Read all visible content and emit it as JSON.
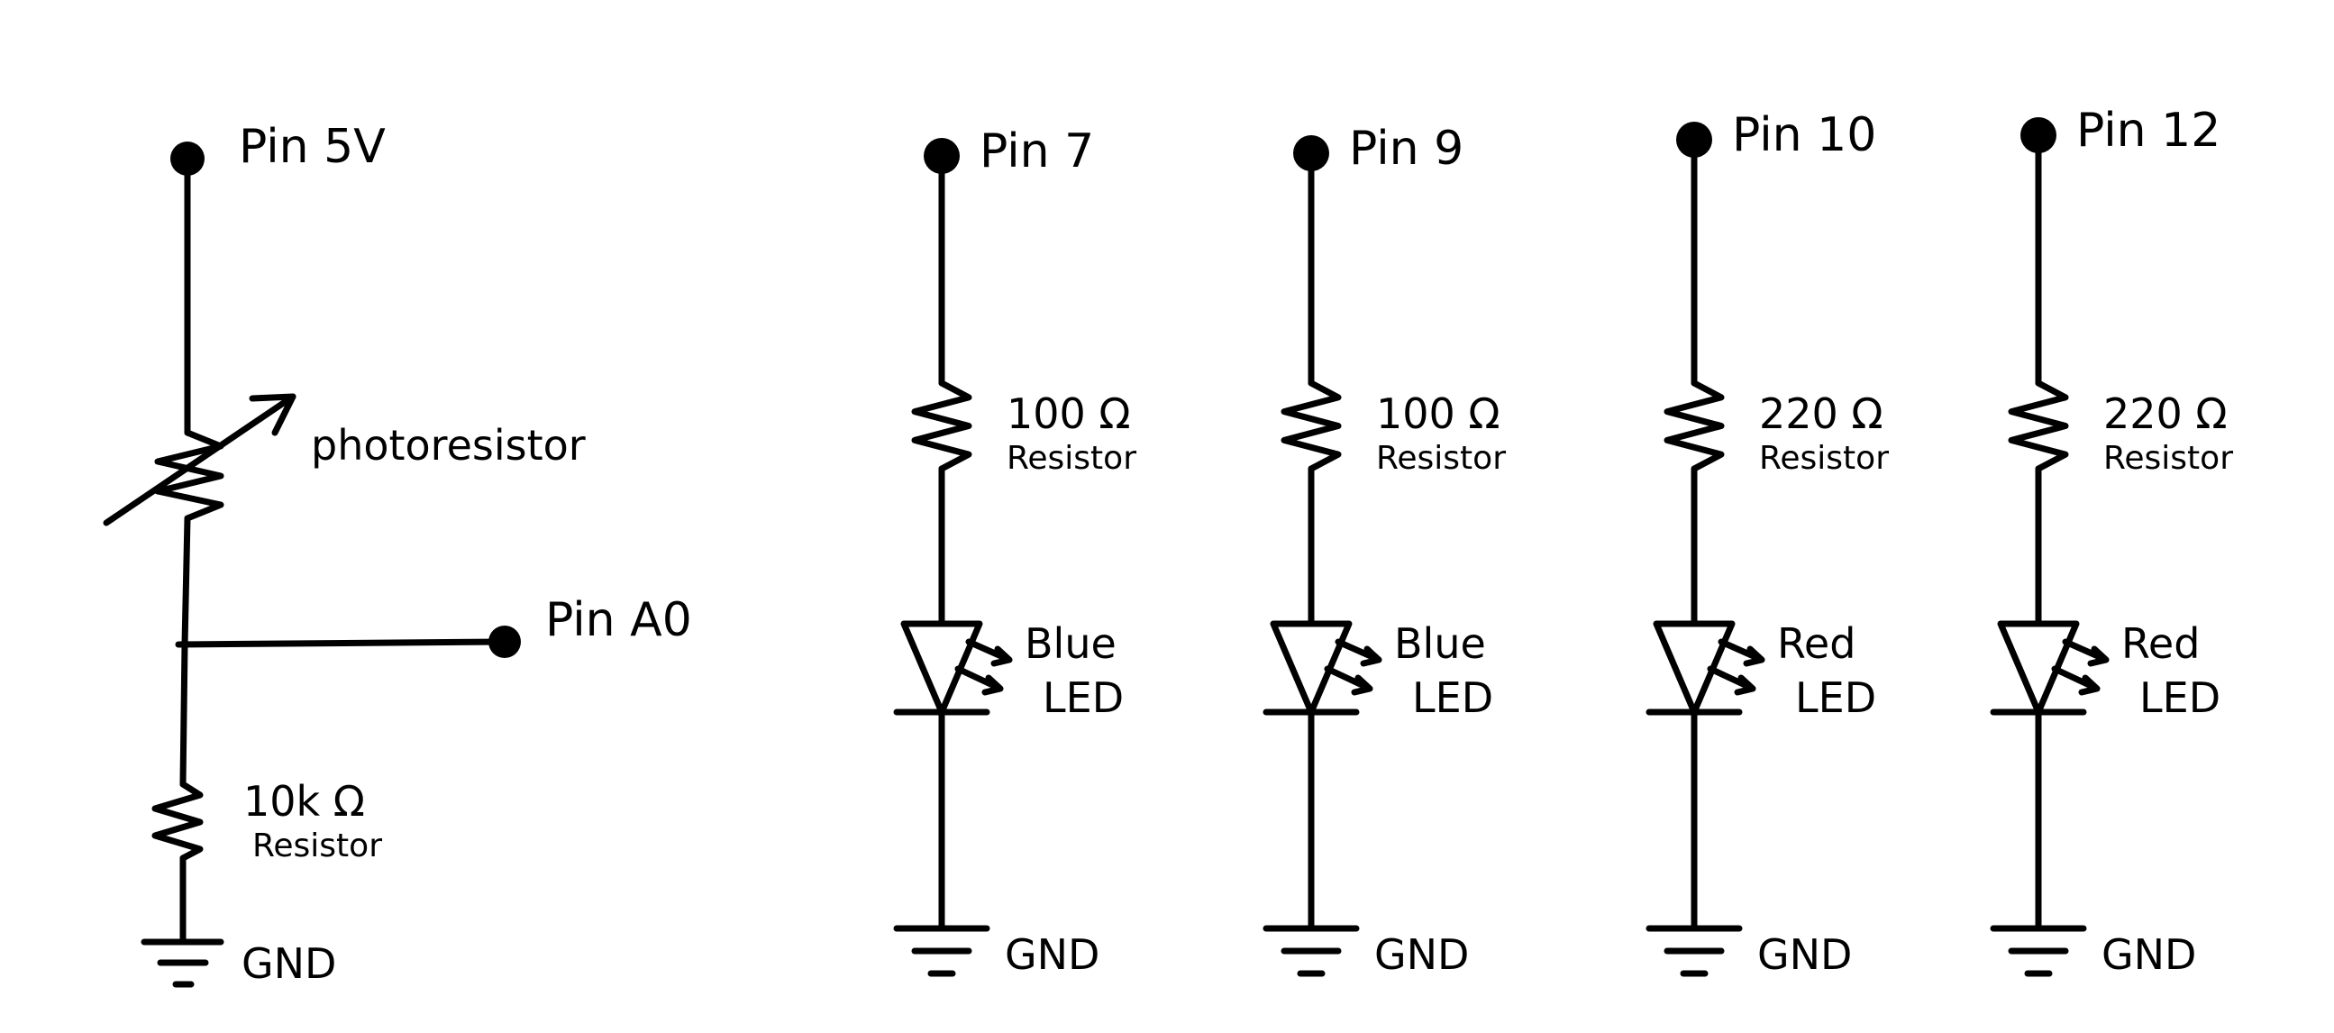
{
  "photo_circuit": {
    "pin_label": "Pin 5V",
    "component_label": "photoresistor",
    "analog_pin_label": "Pin A0",
    "resistor_value": "10k Ω",
    "resistor_word": "Resistor",
    "ground_label": "GND"
  },
  "led_circuits": [
    {
      "pin_label": "Pin 7",
      "resistor_value": "100 Ω",
      "resistor_word": "Resistor",
      "led_color": "Blue",
      "led_word": "LED",
      "ground_label": "GND"
    },
    {
      "pin_label": "Pin 9",
      "resistor_value": "100 Ω",
      "resistor_word": "Resistor",
      "led_color": "Blue",
      "led_word": "LED",
      "ground_label": "GND"
    },
    {
      "pin_label": "Pin 10",
      "resistor_value": "220 Ω",
      "resistor_word": "Resistor",
      "led_color": "Red",
      "led_word": "LED",
      "ground_label": "GND"
    },
    {
      "pin_label": "Pin 12",
      "resistor_value": "220 Ω",
      "resistor_word": "Resistor",
      "led_color": "Red",
      "led_word": "LED",
      "ground_label": "GND"
    }
  ]
}
